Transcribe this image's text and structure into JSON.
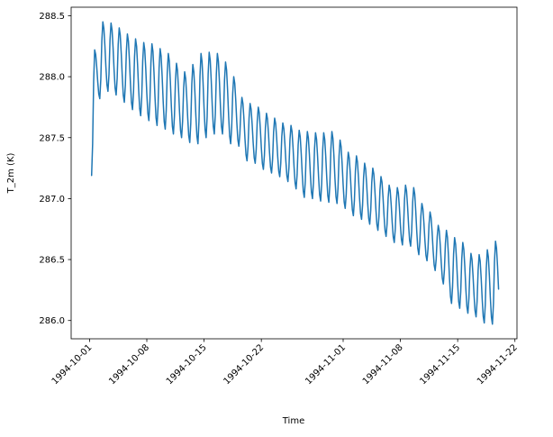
{
  "chart_data": {
    "type": "line",
    "title": "",
    "xlabel": "Time",
    "ylabel": "T_2m (K)",
    "grid": false,
    "legend": "none",
    "background_color": "#ffffff",
    "spine_color": "#000000",
    "x_tick_labels": [
      "1994-10-01",
      "1994-10-08",
      "1994-10-15",
      "1994-10-22",
      "1994-11-01",
      "1994-11-08",
      "1994-11-15",
      "1994-11-22"
    ],
    "x_tick_day_offsets": [
      0,
      7,
      14,
      21,
      31,
      38,
      45,
      52
    ],
    "x_tick_rotation_deg": 45,
    "y_ticks": [
      286.0,
      286.5,
      287.0,
      287.5,
      288.0,
      288.5
    ],
    "xlim_days_from_first_tick": [
      -2.25,
      52.25
    ],
    "ylim": [
      285.85,
      288.57
    ],
    "series": [
      {
        "name": "T_2m",
        "color": "#1f77b4",
        "line_width": 1.5,
        "start_day": "1994-10-01",
        "end_day": "1994-11-20",
        "first_sample_hour": 6,
        "sample_interval_hours": 3,
        "daily_peak_hour": 15,
        "daily_min_hour": 6,
        "daily_max": [
          288.22,
          288.45,
          288.44,
          288.4,
          288.35,
          288.31,
          288.28,
          288.27,
          288.23,
          288.19,
          288.11,
          288.04,
          288.1,
          288.19,
          288.2,
          288.19,
          288.12,
          288.0,
          287.83,
          287.78,
          287.75,
          287.7,
          287.66,
          287.62,
          287.6,
          287.56,
          287.55,
          287.54,
          287.54,
          287.55,
          287.48,
          287.38,
          287.35,
          287.29,
          287.25,
          287.18,
          287.11,
          287.09,
          287.11,
          287.09,
          286.96,
          286.89,
          286.78,
          286.74,
          286.68,
          286.64,
          286.55,
          286.54,
          286.58,
          286.65
        ],
        "daily_morning_min": [
          287.19,
          287.82,
          287.88,
          287.85,
          287.79,
          287.73,
          287.68,
          287.64,
          287.6,
          287.57,
          287.53,
          287.5,
          287.46,
          287.45,
          287.5,
          287.53,
          287.53,
          287.45,
          287.43,
          287.31,
          287.29,
          287.24,
          287.21,
          287.18,
          287.14,
          287.08,
          287.01,
          287.0,
          286.98,
          286.97,
          286.96,
          286.92,
          286.86,
          286.83,
          286.79,
          286.74,
          286.69,
          286.64,
          286.62,
          286.61,
          286.54,
          286.49,
          286.41,
          286.3,
          286.14,
          286.1,
          286.06,
          286.03,
          285.98,
          285.97
        ],
        "end_virtual_min": 286.05,
        "end_day_offset": 50.0
      }
    ]
  }
}
